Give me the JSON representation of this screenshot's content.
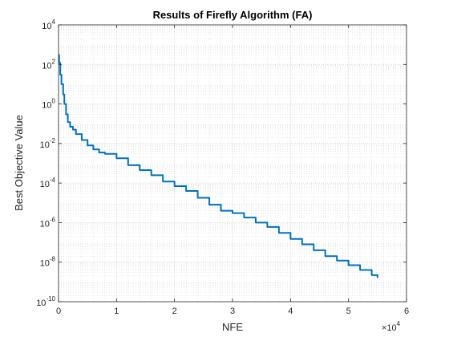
{
  "chart_data": {
    "type": "line",
    "title": "Results of Firefly Algorithm (FA)",
    "xlabel": "NFE",
    "ylabel": "Best Objective Value",
    "x_multiplier_label": {
      "base": "×10",
      "exp": "4"
    },
    "xscale": "linear",
    "yscale": "log",
    "xlim": [
      0,
      6
    ],
    "ylim": [
      1e-10,
      10000.0
    ],
    "x_ticks": [
      "0",
      "1",
      "2",
      "3",
      "4",
      "5",
      "6"
    ],
    "y_ticks": [
      {
        "base": "10",
        "exp": "-10"
      },
      {
        "base": "10",
        "exp": "-8"
      },
      {
        "base": "10",
        "exp": "-6"
      },
      {
        "base": "10",
        "exp": "-4"
      },
      {
        "base": "10",
        "exp": "-2"
      },
      {
        "base": "10",
        "exp": "0"
      },
      {
        "base": "10",
        "exp": "2"
      },
      {
        "base": "10",
        "exp": "4"
      }
    ],
    "grid": true,
    "minor_grid": true,
    "line_color": "#0072BD",
    "series": [
      {
        "x": [
          0.0,
          0.01,
          0.03,
          0.05,
          0.08,
          0.1,
          0.13,
          0.16,
          0.2,
          0.25,
          0.3,
          0.4,
          0.5,
          0.6,
          0.7,
          0.8,
          1.0,
          1.2,
          1.4,
          1.6,
          1.8,
          2.0,
          2.2,
          2.4,
          2.6,
          2.8,
          3.0,
          3.2,
          3.4,
          3.6,
          3.8,
          4.0,
          4.2,
          4.4,
          4.6,
          4.8,
          5.0,
          5.2,
          5.4,
          5.5
        ],
        "y": [
          300,
          120,
          30,
          10,
          3,
          1,
          0.3,
          0.12,
          0.07,
          0.05,
          0.03,
          0.015,
          0.008,
          0.005,
          0.0035,
          0.003,
          0.0018,
          0.0008,
          0.00045,
          0.00025,
          0.00012,
          7e-05,
          4e-05,
          1.8e-05,
          8e-06,
          4e-06,
          3e-06,
          1.8e-06,
          1e-06,
          6e-07,
          3e-07,
          1.5e-07,
          8e-08,
          4e-08,
          2e-08,
          1.2e-08,
          7e-09,
          4e-09,
          2.2e-09,
          1.6e-09
        ]
      }
    ]
  }
}
